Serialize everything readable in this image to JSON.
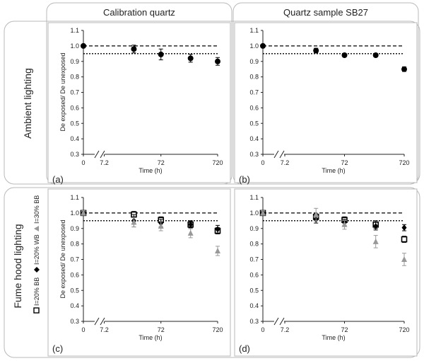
{
  "headers": {
    "col1": "Calibration quartz",
    "col2": "Quartz sample SB27",
    "row1": "Ambient lighting",
    "row2": "Fume hood lighting"
  },
  "legend": {
    "s20bb": "I=20% BB",
    "s20wb": "I=20% WB",
    "s30bb": "I=30% BB"
  },
  "colors": {
    "black": "#000000",
    "gray": "#999999",
    "panel_border": "#b9b9b9"
  },
  "chart_data": [
    {
      "type": "scatter",
      "panel": "(a)",
      "xlabel": "Time (h)",
      "ylabel": "De exposed/ De unexposed",
      "xticks": [
        "0",
        "7.2",
        "72",
        "720"
      ],
      "ylim": [
        0.3,
        1.1
      ],
      "yticks": [
        "0.3",
        "0.4",
        "0.5",
        "0.6",
        "0.7",
        "0.8",
        "0.9",
        "1.0",
        "1.1"
      ],
      "reference_lines": [
        1.0,
        0.95
      ],
      "series": [
        {
          "name": "Ambient",
          "marker": "circle",
          "color": "#000000",
          "x": [
            0,
            24,
            72,
            240,
            720
          ],
          "y": [
            1.0,
            0.98,
            0.945,
            0.92,
            0.9
          ],
          "err": [
            0,
            0.025,
            0.035,
            0.025,
            0.025
          ]
        }
      ]
    },
    {
      "type": "scatter",
      "panel": "(b)",
      "xlabel": "Time (h)",
      "ylabel": "",
      "xticks": [
        "0",
        "7.2",
        "72",
        "720"
      ],
      "ylim": [
        0.3,
        1.1
      ],
      "yticks": [
        "0.3",
        "0.4",
        "0.5",
        "0.6",
        "0.7",
        "0.8",
        "0.9",
        "1.0",
        "1.1"
      ],
      "reference_lines": [
        1.0,
        0.95
      ],
      "series": [
        {
          "name": "Ambient",
          "marker": "circle",
          "color": "#000000",
          "x": [
            0,
            24,
            72,
            240,
            720
          ],
          "y": [
            1.0,
            0.97,
            0.94,
            0.94,
            0.85
          ],
          "err": [
            0,
            0.015,
            0.01,
            0.01,
            0.015
          ]
        }
      ]
    },
    {
      "type": "scatter",
      "panel": "(c)",
      "xlabel": "Time (h)",
      "ylabel": "De exposed/ De unexposed",
      "xticks": [
        "0",
        "7.2",
        "72",
        "720"
      ],
      "ylim": [
        0.3,
        1.1
      ],
      "yticks": [
        "0.3",
        "0.4",
        "0.5",
        "0.6",
        "0.7",
        "0.8",
        "0.9",
        "1.0",
        "1.1"
      ],
      "reference_lines": [
        1.0,
        0.95
      ],
      "series": [
        {
          "name": "I=20% BB",
          "marker": "square-open",
          "color": "#000000",
          "x": [
            0,
            24,
            72,
            240,
            720
          ],
          "y": [
            1.0,
            0.99,
            0.955,
            0.925,
            0.885
          ],
          "err": [
            0.015,
            0.02,
            0.02,
            0.02,
            0.02
          ]
        },
        {
          "name": "I=20% WB",
          "marker": "diamond",
          "color": "#000000",
          "x": [
            0,
            24,
            72,
            240,
            720
          ],
          "y": [
            1.0,
            0.95,
            0.935,
            0.925,
            0.895
          ],
          "err": [
            0.015,
            0.04,
            0.025,
            0.025,
            0.025
          ]
        },
        {
          "name": "I=30% BB",
          "marker": "triangle",
          "color": "#999999",
          "x": [
            0,
            24,
            72,
            240,
            720
          ],
          "y": [
            1.0,
            0.94,
            0.915,
            0.87,
            0.755
          ],
          "err": [
            0.015,
            0.03,
            0.03,
            0.03,
            0.03
          ]
        }
      ]
    },
    {
      "type": "scatter",
      "panel": "(d)",
      "xlabel": "Time (h)",
      "ylabel": "",
      "xticks": [
        "0",
        "7.2",
        "72",
        "720"
      ],
      "ylim": [
        0.3,
        1.1
      ],
      "yticks": [
        "0.3",
        "0.4",
        "0.5",
        "0.6",
        "0.7",
        "0.8",
        "0.9",
        "1.0",
        "1.1"
      ],
      "reference_lines": [
        1.0,
        0.95
      ],
      "series": [
        {
          "name": "I=20% BB",
          "marker": "square-open",
          "color": "#000000",
          "x": [
            0,
            24,
            72,
            240,
            720
          ],
          "y": [
            1.0,
            0.975,
            0.955,
            0.925,
            0.83
          ],
          "err": [
            0.015,
            0.02,
            0.02,
            0.025,
            0.02
          ]
        },
        {
          "name": "I=20% WB",
          "marker": "diamond",
          "color": "#000000",
          "x": [
            0,
            24,
            72,
            240,
            720
          ],
          "y": [
            1.0,
            0.96,
            0.94,
            0.915,
            0.905
          ],
          "err": [
            0.015,
            0.025,
            0.02,
            0.025,
            0.02
          ]
        },
        {
          "name": "I=30% BB",
          "marker": "triangle",
          "color": "#999999",
          "x": [
            0,
            24,
            72,
            240,
            720
          ],
          "y": [
            1.0,
            0.99,
            0.925,
            0.815,
            0.7
          ],
          "err": [
            0.015,
            0.04,
            0.03,
            0.04,
            0.04
          ]
        }
      ]
    }
  ]
}
